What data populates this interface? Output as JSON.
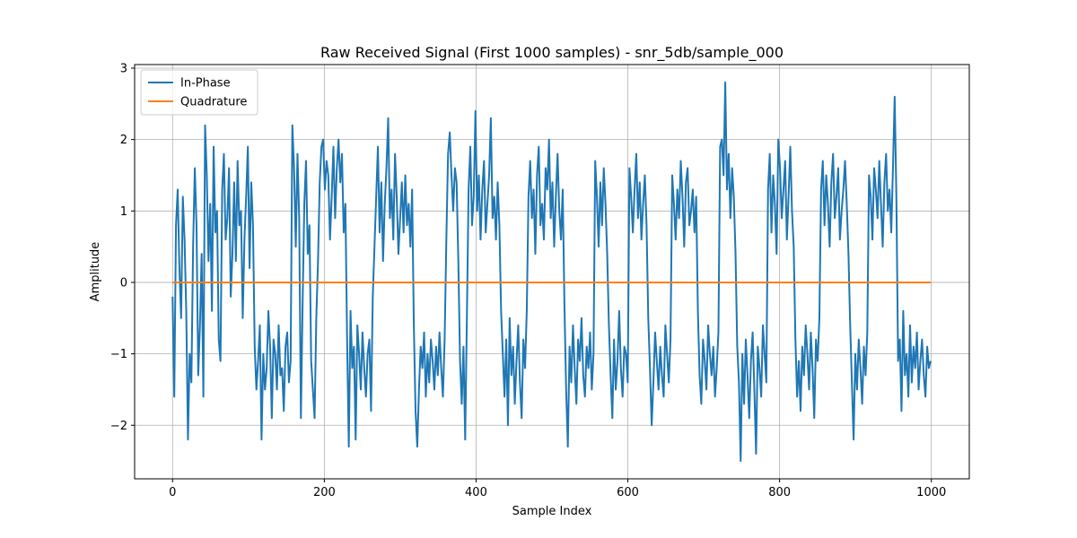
{
  "chart_data": {
    "type": "line",
    "title": "Raw Received Signal (First 1000 samples) - snr_5db/sample_000",
    "xlabel": "Sample Index",
    "ylabel": "Amplitude",
    "xlim": [
      -50,
      1050
    ],
    "ylim": [
      -2.75,
      3.05
    ],
    "xticks": [
      0,
      200,
      400,
      600,
      800,
      1000
    ],
    "yticks": [
      -2,
      -1,
      0,
      1,
      2,
      3
    ],
    "xtick_labels": [
      "0",
      "200",
      "400",
      "600",
      "800",
      "1000"
    ],
    "ytick_labels": [
      "−2",
      "−1",
      "0",
      "1",
      "2",
      "3"
    ],
    "grid": true,
    "legend_position": "top-left",
    "series": [
      {
        "name": "In-Phase",
        "color": "#1f77b4",
        "description_of_values": "bipolar random symbols with noise, alternating near +1 and -1",
        "x_start": 0,
        "x_end": 999,
        "values": [
          -0.2,
          -1.6,
          0.8,
          1.3,
          0.2,
          -0.5,
          1.2,
          0.6,
          -0.4,
          -2.2,
          -1.0,
          -1.4,
          0.5,
          1.6,
          0.8,
          -1.3,
          -0.6,
          0.4,
          -1.6,
          2.2,
          1.5,
          0.3,
          1.1,
          -0.4,
          1.9,
          0.7,
          1.0,
          -0.8,
          -1.1,
          1.3,
          1.8,
          0.6,
          0.9,
          1.6,
          -0.2,
          0.4,
          1.4,
          0.3,
          1.7,
          0.8,
          1.0,
          -0.5,
          0.6,
          1.2,
          1.9,
          0.2,
          1.4,
          0.8,
          -0.9,
          -1.5,
          -1.1,
          -0.6,
          -2.2,
          -1.0,
          -1.5,
          -1.2,
          -0.4,
          -0.9,
          -1.9,
          -0.8,
          -1.0,
          -1.5,
          -0.6,
          -1.3,
          -1.2,
          -1.8,
          -0.9,
          -0.7,
          -1.4,
          -1.1,
          2.2,
          1.6,
          0.5,
          1.8,
          0.9,
          -1.9,
          -0.3,
          1.1,
          1.7,
          0.4,
          0.8,
          -1.1,
          -1.5,
          -1.9,
          -0.5,
          0.3,
          1.4,
          1.9,
          2.0,
          1.3,
          1.7,
          1.5,
          0.6,
          1.2,
          1.9,
          0.9,
          1.6,
          2.0,
          1.4,
          1.8,
          0.7,
          1.1,
          -0.8,
          -2.3,
          -0.4,
          -1.2,
          -0.9,
          -2.2,
          -0.6,
          -1.0,
          -1.5,
          -0.7,
          -1.2,
          -1.6,
          -1.0,
          -0.8,
          -1.8,
          -0.2,
          0.5,
          1.2,
          1.9,
          0.7,
          1.4,
          0.3,
          1.1,
          1.6,
          2.3,
          0.9,
          1.3,
          0.6,
          1.8,
          1.2,
          0.4,
          0.9,
          1.4,
          0.7,
          1.5,
          0.8,
          1.1,
          0.5,
          1.3,
          -0.6,
          -1.8,
          -2.3,
          -1.5,
          -0.9,
          -1.2,
          -0.7,
          -1.6,
          -1.0,
          -1.4,
          -0.8,
          -1.1,
          -1.5,
          -0.9,
          -1.3,
          -0.7,
          -1.2,
          -1.6,
          -0.8,
          0.6,
          1.8,
          2.1,
          1.5,
          1.0,
          1.6,
          1.4,
          0.3,
          -1.1,
          -1.7,
          -0.9,
          -2.2,
          -0.5,
          1.3,
          1.9,
          0.8,
          1.2,
          2.4,
          1.0,
          1.5,
          0.6,
          1.3,
          1.7,
          0.7,
          1.1,
          1.5,
          2.3,
          0.9,
          1.2,
          0.6,
          1.4,
          0.8,
          -0.4,
          -1.0,
          -1.6,
          -0.8,
          -2.0,
          -0.5,
          -1.3,
          -0.9,
          -1.7,
          -1.1,
          -0.6,
          -1.4,
          -1.9,
          -0.8,
          -1.2,
          -0.4,
          1.2,
          1.7,
          0.9,
          1.3,
          0.4,
          1.5,
          1.9,
          0.8,
          1.1,
          0.6,
          1.6,
          1.3,
          2.0,
          0.9,
          1.4,
          0.5,
          1.2,
          1.8,
          1.0,
          0.6,
          1.3,
          -0.3,
          -1.5,
          -2.3,
          -0.9,
          -1.4,
          -0.6,
          -1.2,
          -1.7,
          -0.8,
          -1.1,
          -0.5,
          -1.3,
          -1.6,
          -0.9,
          -1.2,
          -0.7,
          -1.5,
          -1.0,
          1.7,
          1.2,
          0.5,
          1.4,
          0.8,
          1.6,
          1.1,
          0.4,
          -0.6,
          -1.3,
          -1.9,
          -0.8,
          -1.5,
          -1.1,
          -0.4,
          -1.2,
          -1.6,
          -0.9,
          -1.0,
          -1.4,
          1.6,
          1.2,
          0.7,
          1.3,
          1.8,
          0.9,
          1.4,
          0.6,
          1.1,
          1.5,
          0.8,
          -0.5,
          -1.2,
          -2.0,
          -1.4,
          -0.7,
          -1.1,
          -1.5,
          -0.9,
          -1.3,
          -1.6,
          -0.6,
          -1.0,
          -1.4,
          -0.8,
          1.5,
          1.1,
          0.6,
          1.3,
          0.9,
          1.7,
          1.2,
          0.5,
          1.4,
          1.6,
          0.8,
          1.0,
          1.3,
          0.7,
          1.2,
          -0.4,
          -1.3,
          -1.7,
          -0.8,
          -1.1,
          -1.5,
          -0.6,
          -1.0,
          -1.3,
          -0.9,
          -1.6,
          -1.2,
          -0.7,
          1.9,
          2.0,
          1.5,
          2.8,
          1.3,
          1.8,
          0.9,
          1.6,
          1.2,
          0.4,
          -0.9,
          -1.4,
          -2.5,
          -1.0,
          -1.7,
          -0.8,
          -1.3,
          -1.9,
          -1.1,
          -0.7,
          -1.5,
          -2.4,
          -0.9,
          -1.2,
          -1.6,
          -0.6,
          -1.0,
          -1.4,
          1.3,
          1.8,
          0.7,
          1.5,
          1.1,
          0.4,
          2.0,
          1.6,
          0.9,
          1.3,
          1.7,
          0.6,
          1.2,
          1.9,
          1.0,
          0.5,
          -0.8,
          -1.6,
          -1.1,
          -1.8,
          -0.9,
          -1.3,
          -0.6,
          -1.0,
          -1.5,
          -0.7,
          -1.2,
          -1.9,
          -0.8,
          -1.1,
          -0.5,
          1.3,
          1.7,
          0.8,
          1.5,
          1.1,
          0.5,
          1.4,
          1.8,
          0.9,
          1.2,
          1.6,
          0.6,
          1.0,
          1.3,
          1.7,
          1.1,
          0.4,
          -0.6,
          -1.4,
          -2.2,
          -1.0,
          -1.5,
          -0.8,
          -1.2,
          -1.7,
          -0.9,
          -1.3,
          -0.7,
          1.5,
          1.2,
          0.6,
          1.6,
          1.3,
          0.9,
          1.7,
          1.1,
          0.5,
          1.4,
          1.8,
          1.0,
          1.3,
          0.7,
          1.6,
          2.6,
          1.2,
          -1.1,
          -0.8,
          -1.8,
          -0.4,
          -1.3,
          -1.0,
          -1.6,
          -0.6,
          -1.4,
          -0.9,
          -1.2,
          -0.7,
          -1.5,
          -1.1,
          -0.8,
          -1.3,
          -1.6,
          -0.9,
          -1.2,
          -1.1
        ]
      },
      {
        "name": "Quadrature",
        "color": "#ff7f0e",
        "x_start": 0,
        "x_end": 999,
        "values": [
          0,
          0
        ]
      }
    ]
  }
}
